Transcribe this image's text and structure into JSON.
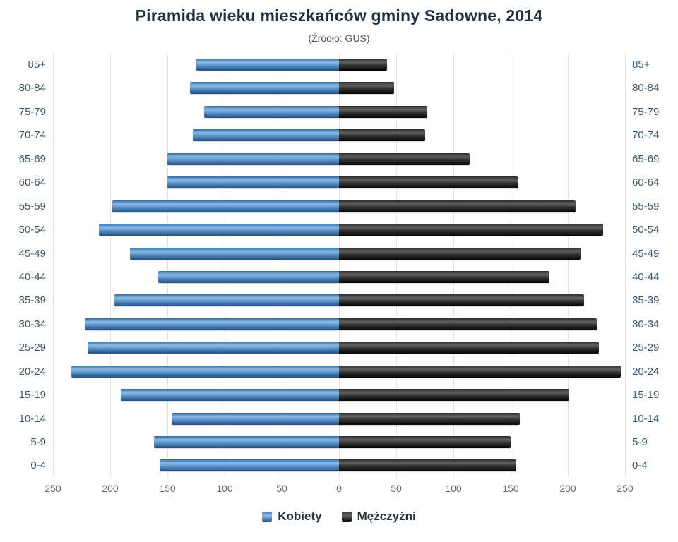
{
  "title": "Piramida wieku mieszkańców gminy Sadowne, 2014",
  "subtitle": "(Źródło: GUS)",
  "legend": [
    {
      "label": "Kobiety",
      "color": "#4a84c4"
    },
    {
      "label": "Mężczyźni",
      "color": "#1a1a1a"
    }
  ],
  "chart_data": {
    "type": "bar",
    "variant": "population-pyramid",
    "title": "Piramida wieku mieszkańców gminy Sadowne, 2014",
    "subtitle": "(Źródło: GUS)",
    "categories": [
      "85+",
      "80-84",
      "75-79",
      "70-74",
      "65-69",
      "60-64",
      "55-59",
      "50-54",
      "45-49",
      "40-44",
      "35-39",
      "30-34",
      "25-29",
      "20-24",
      "15-19",
      "10-14",
      "5-9",
      "0-4"
    ],
    "series": [
      {
        "name": "Kobiety",
        "side": "left",
        "color": "#4a84c4",
        "values": [
          125,
          130,
          118,
          128,
          150,
          150,
          198,
          210,
          183,
          158,
          196,
          222,
          220,
          234,
          191,
          146,
          162,
          157
        ]
      },
      {
        "name": "Mężczyźni",
        "side": "right",
        "color": "#1a1a1a",
        "values": [
          42,
          48,
          77,
          75,
          114,
          157,
          207,
          231,
          211,
          184,
          214,
          225,
          227,
          246,
          201,
          158,
          150,
          155
        ]
      }
    ],
    "xlim": [
      0,
      250
    ],
    "x_ticks": [
      "250",
      "200",
      "150",
      "100",
      "50",
      "0",
      "50",
      "100",
      "150",
      "200",
      "250"
    ],
    "grid": true,
    "legend_position": "bottom"
  }
}
